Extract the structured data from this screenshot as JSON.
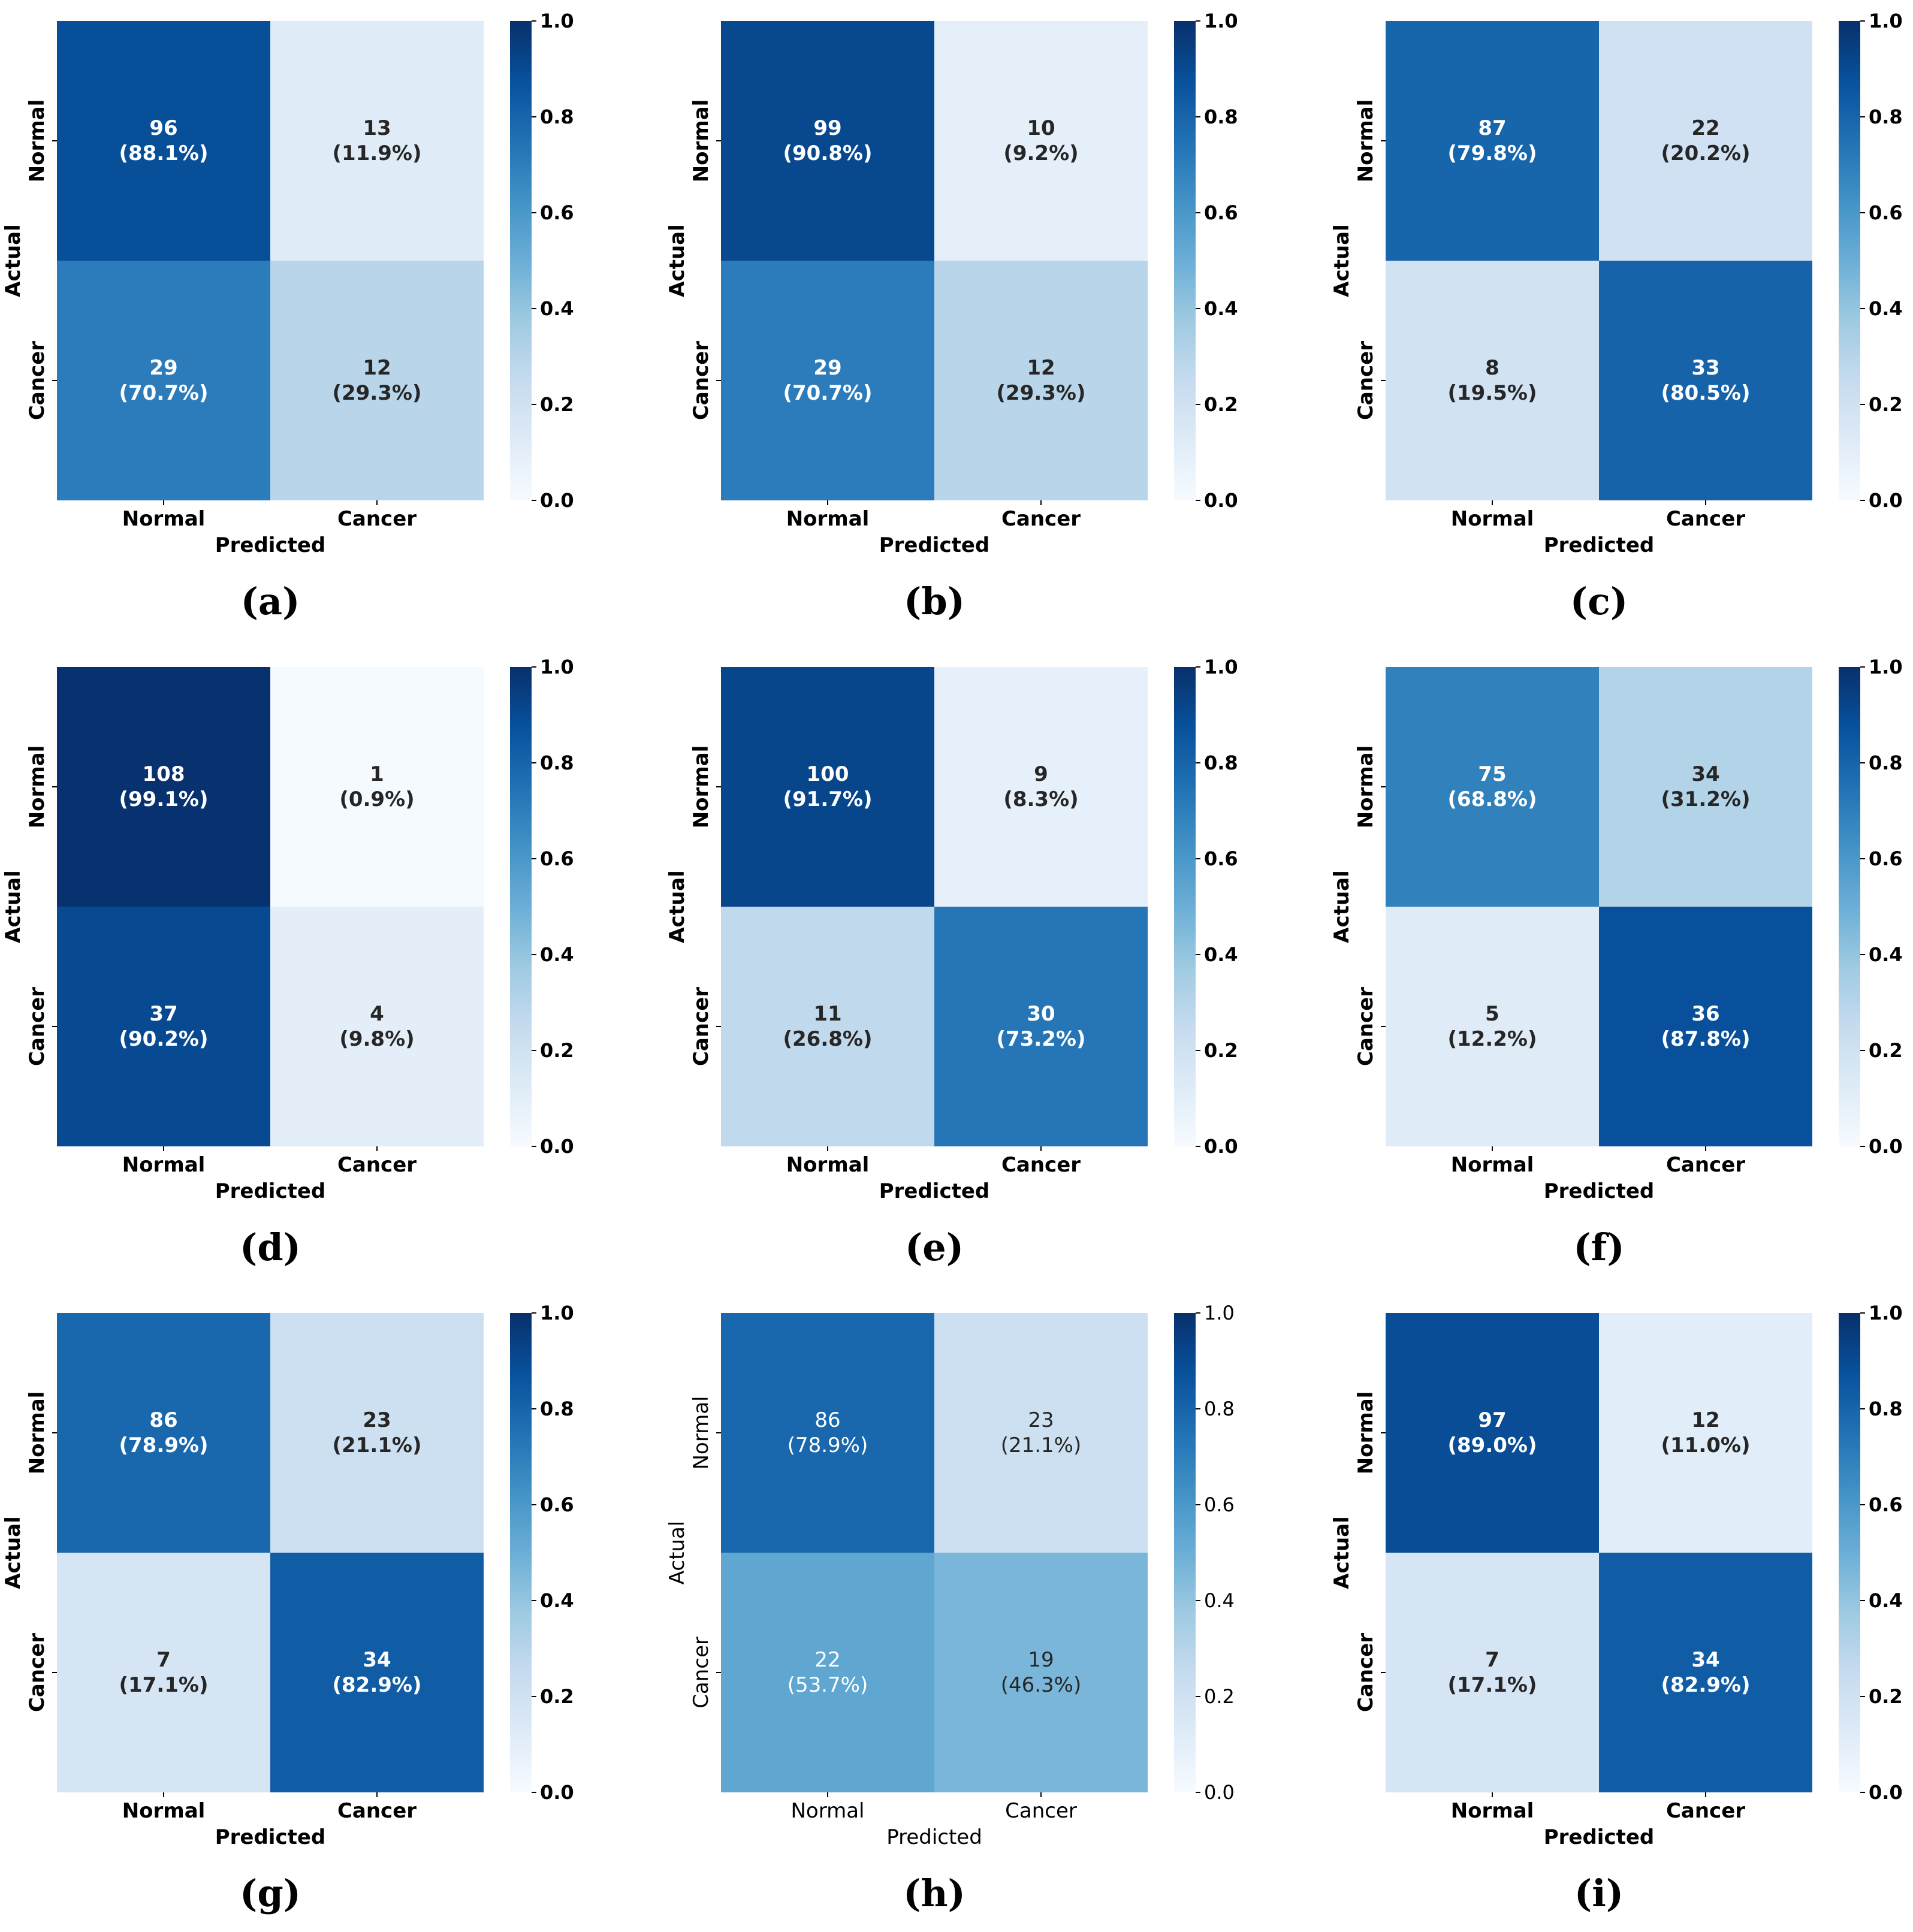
{
  "colorbar": {
    "ticks": [
      "1.0",
      "0.8",
      "0.6",
      "0.4",
      "0.2",
      "0.0"
    ],
    "tick_values": [
      1.0,
      0.8,
      0.6,
      0.4,
      0.2,
      0.0
    ]
  },
  "colors": {
    "scale": [
      "#f7fbff",
      "#deebf7",
      "#c6dbef",
      "#9ecae1",
      "#6baed6",
      "#4292c6",
      "#2171b5",
      "#08519c",
      "#08306b"
    ],
    "text_dark": "#262626",
    "text_light": "#ffffff",
    "label": "#000000"
  },
  "chart_data": [
    {
      "type": "heatmap",
      "panel": "(a)",
      "xlabel": "Predicted",
      "ylabel": "Actual",
      "x_categories": [
        "Normal",
        "Cancer"
      ],
      "y_categories": [
        "Normal",
        "Cancer"
      ],
      "counts": [
        [
          96,
          13
        ],
        [
          29,
          12
        ]
      ],
      "annotations": [
        [
          "96\n(88.1%)",
          "13\n(11.9%)"
        ],
        [
          "29\n(70.7%)",
          "12\n(29.3%)"
        ]
      ],
      "values": [
        [
          0.881,
          0.119
        ],
        [
          0.707,
          0.293
        ]
      ],
      "colorbar_range": [
        0.0,
        1.0
      ],
      "bold": true
    },
    {
      "type": "heatmap",
      "panel": "(b)",
      "xlabel": "Predicted",
      "ylabel": "Actual",
      "x_categories": [
        "Normal",
        "Cancer"
      ],
      "y_categories": [
        "Normal",
        "Cancer"
      ],
      "counts": [
        [
          99,
          10
        ],
        [
          29,
          12
        ]
      ],
      "annotations": [
        [
          "99\n(90.8%)",
          "10\n(9.2%)"
        ],
        [
          "29\n(70.7%)",
          "12\n(29.3%)"
        ]
      ],
      "values": [
        [
          0.908,
          0.092
        ],
        [
          0.707,
          0.293
        ]
      ],
      "colorbar_range": [
        0.0,
        1.0
      ],
      "bold": true
    },
    {
      "type": "heatmap",
      "panel": "(c)",
      "xlabel": "Predicted",
      "ylabel": "Actual",
      "x_categories": [
        "Normal",
        "Cancer"
      ],
      "y_categories": [
        "Normal",
        "Cancer"
      ],
      "counts": [
        [
          87,
          22
        ],
        [
          8,
          33
        ]
      ],
      "annotations": [
        [
          "87\n(79.8%)",
          "22\n(20.2%)"
        ],
        [
          "8\n(19.5%)",
          "33\n(80.5%)"
        ]
      ],
      "values": [
        [
          0.798,
          0.202
        ],
        [
          0.195,
          0.805
        ]
      ],
      "colorbar_range": [
        0.0,
        1.0
      ],
      "bold": true
    },
    {
      "type": "heatmap",
      "panel": "(d)",
      "xlabel": "Predicted",
      "ylabel": "Actual",
      "x_categories": [
        "Normal",
        "Cancer"
      ],
      "y_categories": [
        "Normal",
        "Cancer"
      ],
      "counts": [
        [
          108,
          1
        ],
        [
          37,
          4
        ]
      ],
      "annotations": [
        [
          "108\n(99.1%)",
          "1\n(0.9%)"
        ],
        [
          "37\n(90.2%)",
          "4\n(9.8%)"
        ]
      ],
      "values": [
        [
          0.991,
          0.009
        ],
        [
          0.902,
          0.098
        ]
      ],
      "colorbar_range": [
        0.0,
        1.0
      ],
      "bold": true
    },
    {
      "type": "heatmap",
      "panel": "(e)",
      "xlabel": "Predicted",
      "ylabel": "Actual",
      "x_categories": [
        "Normal",
        "Cancer"
      ],
      "y_categories": [
        "Normal",
        "Cancer"
      ],
      "counts": [
        [
          100,
          9
        ],
        [
          11,
          30
        ]
      ],
      "annotations": [
        [
          "100\n(91.7%)",
          "9\n(8.3%)"
        ],
        [
          "11\n(26.8%)",
          "30\n(73.2%)"
        ]
      ],
      "values": [
        [
          0.917,
          0.083
        ],
        [
          0.268,
          0.732
        ]
      ],
      "colorbar_range": [
        0.0,
        1.0
      ],
      "bold": true
    },
    {
      "type": "heatmap",
      "panel": "(f)",
      "xlabel": "Predicted",
      "ylabel": "Actual",
      "x_categories": [
        "Normal",
        "Cancer"
      ],
      "y_categories": [
        "Normal",
        "Cancer"
      ],
      "counts": [
        [
          75,
          34
        ],
        [
          5,
          36
        ]
      ],
      "annotations": [
        [
          "75\n(68.8%)",
          "34\n(31.2%)"
        ],
        [
          "5\n(12.2%)",
          "36\n(87.8%)"
        ]
      ],
      "values": [
        [
          0.688,
          0.312
        ],
        [
          0.122,
          0.878
        ]
      ],
      "colorbar_range": [
        0.0,
        1.0
      ],
      "bold": true
    },
    {
      "type": "heatmap",
      "panel": "(g)",
      "xlabel": "Predicted",
      "ylabel": "Actual",
      "x_categories": [
        "Normal",
        "Cancer"
      ],
      "y_categories": [
        "Normal",
        "Cancer"
      ],
      "counts": [
        [
          86,
          23
        ],
        [
          7,
          34
        ]
      ],
      "annotations": [
        [
          "86\n(78.9%)",
          "23\n(21.1%)"
        ],
        [
          "7\n(17.1%)",
          "34\n(82.9%)"
        ]
      ],
      "values": [
        [
          0.789,
          0.211
        ],
        [
          0.171,
          0.829
        ]
      ],
      "colorbar_range": [
        0.0,
        1.0
      ],
      "bold": true
    },
    {
      "type": "heatmap",
      "panel": "(h)",
      "xlabel": "Predicted",
      "ylabel": "Actual",
      "x_categories": [
        "Normal",
        "Cancer"
      ],
      "y_categories": [
        "Normal",
        "Cancer"
      ],
      "counts": [
        [
          86,
          23
        ],
        [
          22,
          19
        ]
      ],
      "annotations": [
        [
          "86\n(78.9%)",
          "23\n(21.1%)"
        ],
        [
          "22\n(53.7%)",
          "19\n(46.3%)"
        ]
      ],
      "values": [
        [
          0.789,
          0.211
        ],
        [
          0.537,
          0.463
        ]
      ],
      "colorbar_range": [
        0.0,
        1.0
      ],
      "bold": false
    },
    {
      "type": "heatmap",
      "panel": "(i)",
      "xlabel": "Predicted",
      "ylabel": "Actual",
      "x_categories": [
        "Normal",
        "Cancer"
      ],
      "y_categories": [
        "Normal",
        "Cancer"
      ],
      "counts": [
        [
          97,
          12
        ],
        [
          7,
          34
        ]
      ],
      "annotations": [
        [
          "97\n(89.0%)",
          "12\n(11.0%)"
        ],
        [
          "7\n(17.1%)",
          "34\n(82.9%)"
        ]
      ],
      "values": [
        [
          0.89,
          0.11
        ],
        [
          0.171,
          0.829
        ]
      ],
      "colorbar_range": [
        0.0,
        1.0
      ],
      "bold": true
    }
  ]
}
